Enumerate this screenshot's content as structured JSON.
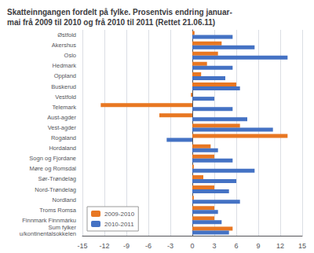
{
  "chart_data": {
    "type": "bar",
    "orientation": "horizontal",
    "title": "Skatteinngangen fordelt på fylke. Prosentvis endring januar-\nmai frå 2009 til 2010 og frå 2010 til 2011 (Rettet 21.06.11)",
    "categories": [
      "Østfold",
      "Akershus",
      "Oslo",
      "Hedmark",
      "Oppland",
      "Buskerud",
      "Vestfold",
      "Telemark",
      "Aust-agder",
      "Vest-agder",
      "Rogaland",
      "Hordaland",
      "Sogn og Fjordane",
      "Møre og Romsdal",
      "Sør-Trøndelag",
      "Nord-Trøndelag",
      "Nordland",
      "Troms Romsa",
      "Finnmark Finnmárku",
      "Sum fylker\nu/kontinentalsokkelen"
    ],
    "series": [
      {
        "name": "2009-2010",
        "color": "#E87722",
        "values": [
          0.3,
          4.0,
          3.5,
          2.0,
          1.2,
          6.0,
          -0.2,
          -12.5,
          -4.5,
          6.5,
          13.0,
          2.5,
          3.0,
          0.2,
          1.5,
          3.0,
          0.2,
          3.0,
          3.0,
          5.5
        ]
      },
      {
        "name": "2010-2011",
        "color": "#4472C4",
        "values": [
          5.5,
          8.5,
          13.0,
          5.5,
          4.5,
          6.5,
          3.0,
          5.5,
          7.5,
          11.0,
          -3.5,
          3.5,
          5.5,
          8.5,
          6.0,
          5.0,
          6.5,
          3.5,
          4.0,
          5.0
        ]
      }
    ],
    "xlim": [
      -15,
      15
    ],
    "xticks": [
      -15,
      -12,
      -9,
      -6,
      -3,
      0,
      3,
      6,
      9,
      12,
      15
    ],
    "grid": true,
    "legend": "lower left"
  }
}
